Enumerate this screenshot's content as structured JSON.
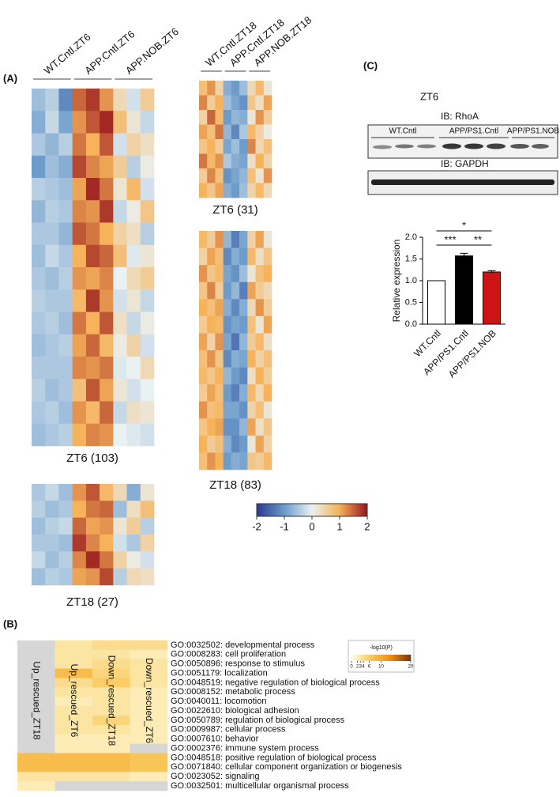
{
  "panels": {
    "a": "(A)",
    "b": "(B)",
    "c": "(C)"
  },
  "zscale": {
    "lim": [
      -2,
      2
    ],
    "ticks": [
      -2,
      -1,
      0,
      1,
      2
    ],
    "colors": [
      "#2a3c93",
      "#6d9ccb",
      "#eaf1f2",
      "#f6b35a",
      "#9b1a1e"
    ]
  },
  "blot": {
    "title": "ZT6",
    "probe1": "IB: RhoA",
    "probe2": "IB: GAPDH",
    "groups": [
      "WT.Cntl",
      "APP/PS1.Cntl",
      "APP/PS1.NOB"
    ]
  },
  "chart_data": [
    {
      "type": "heatmap",
      "title": "ZT6 (103)",
      "groups": [
        "WT.Cntl.ZT6",
        "APP.Cntl.ZT6",
        "APP.NOB.ZT6"
      ],
      "values": [
        [
          -0.6,
          -0.4,
          -1.2,
          1.5,
          1.8,
          1.2,
          0.4,
          -0.2,
          0.6
        ],
        [
          -0.8,
          -0.3,
          -0.9,
          1.2,
          1.6,
          1.9,
          0.8,
          0.2,
          -0.3
        ],
        [
          -0.5,
          -0.7,
          -0.4,
          1.4,
          1.0,
          1.6,
          -0.2,
          0.5,
          0.3
        ],
        [
          -1.0,
          -0.6,
          -0.8,
          1.7,
          1.3,
          1.1,
          0.6,
          -0.4,
          0.1
        ],
        [
          -0.4,
          -0.5,
          -0.6,
          1.1,
          1.9,
          1.4,
          0.2,
          0.9,
          -0.2
        ],
        [
          -0.7,
          -0.4,
          -0.5,
          1.3,
          1.2,
          1.8,
          -0.3,
          0.1,
          0.7
        ],
        [
          -0.5,
          -0.5,
          -0.7,
          1.6,
          1.4,
          1.0,
          0.5,
          0.3,
          -0.4
        ],
        [
          -0.6,
          -0.3,
          -0.5,
          1.0,
          1.7,
          1.5,
          0.8,
          -0.1,
          0.2
        ],
        [
          -0.5,
          -0.6,
          -0.4,
          1.2,
          1.1,
          1.3,
          0.0,
          0.4,
          0.6
        ],
        [
          -0.4,
          -0.5,
          -0.5,
          0.9,
          1.8,
          1.2,
          -0.2,
          0.2,
          -0.3
        ],
        [
          -0.5,
          -0.4,
          -0.6,
          1.4,
          1.0,
          1.6,
          0.3,
          -0.3,
          0.1
        ],
        [
          -0.6,
          -0.5,
          -0.4,
          1.1,
          1.5,
          0.9,
          0.1,
          0.5,
          -0.2
        ],
        [
          -0.5,
          -0.5,
          -0.5,
          1.3,
          1.2,
          1.4,
          -0.1,
          0.0,
          0.4
        ],
        [
          -0.4,
          -0.6,
          -0.5,
          0.8,
          1.6,
          1.1,
          0.2,
          -0.2,
          0.0
        ],
        [
          -0.5,
          -0.4,
          -0.6,
          1.2,
          0.9,
          1.5,
          -0.3,
          0.3,
          0.2
        ],
        [
          -0.6,
          -0.5,
          -0.4,
          1.0,
          1.3,
          1.2,
          0.0,
          -0.1,
          -0.2
        ]
      ]
    },
    {
      "type": "heatmap",
      "title": "ZT18 (27)",
      "values": [
        [
          -0.5,
          -0.3,
          -0.6,
          1.2,
          1.6,
          0.9,
          0.4,
          -0.8,
          0.2
        ],
        [
          -0.4,
          -0.6,
          -0.5,
          1.0,
          1.4,
          1.5,
          -0.6,
          0.3,
          0.8
        ],
        [
          -0.6,
          -0.4,
          -0.3,
          1.5,
          1.1,
          1.2,
          0.2,
          0.6,
          -0.4
        ],
        [
          -0.5,
          -0.5,
          -0.6,
          1.8,
          1.3,
          1.0,
          -0.2,
          -0.5,
          0.5
        ],
        [
          -0.3,
          -0.6,
          -0.4,
          1.3,
          1.9,
          1.4,
          0.5,
          0.1,
          -0.2
        ],
        [
          -0.6,
          -0.4,
          -0.5,
          1.1,
          1.2,
          1.7,
          -0.4,
          0.4,
          0.3
        ]
      ]
    },
    {
      "type": "heatmap",
      "title": "ZT6 (31)",
      "groups": [
        "WT.Cntl.ZT18",
        "APP.Cntl.ZT18",
        "APP.NOB.ZT18"
      ],
      "values": [
        [
          0.8,
          1.2,
          0.5,
          -0.8,
          -1.0,
          -0.6,
          0.4,
          0.9,
          0.2
        ],
        [
          1.3,
          0.6,
          1.0,
          -0.6,
          -0.9,
          -1.1,
          0.7,
          0.3,
          1.1
        ],
        [
          0.5,
          1.5,
          0.9,
          -1.0,
          -0.7,
          -0.8,
          0.2,
          1.2,
          0.6
        ],
        [
          1.1,
          0.8,
          1.4,
          -0.7,
          -1.2,
          -0.5,
          0.9,
          0.5,
          0.1
        ],
        [
          0.7,
          1.0,
          0.6,
          -0.9,
          -0.6,
          -1.0,
          1.3,
          0.4,
          0.8
        ],
        [
          1.4,
          0.9,
          1.2,
          -0.5,
          -0.8,
          -0.9,
          0.3,
          1.0,
          0.5
        ],
        [
          0.6,
          1.3,
          0.8,
          -1.1,
          -0.9,
          -0.7,
          0.8,
          0.2,
          1.2
        ],
        [
          1.0,
          0.7,
          1.1,
          -0.8,
          -1.0,
          -0.6,
          0.5,
          0.9,
          0.4
        ]
      ]
    },
    {
      "type": "heatmap",
      "title": "ZT18 (83)",
      "values": [
        [
          0.9,
          0.6,
          1.2,
          -0.7,
          -1.3,
          -0.9,
          0.5,
          1.1,
          0.2
        ],
        [
          0.5,
          1.1,
          0.8,
          -1.2,
          -0.8,
          -1.0,
          0.9,
          0.3,
          0.7
        ],
        [
          1.2,
          0.7,
          0.9,
          -0.9,
          -1.1,
          -0.6,
          0.2,
          0.8,
          1.0
        ],
        [
          0.7,
          1.3,
          0.6,
          -1.0,
          -0.7,
          -1.3,
          1.1,
          0.6,
          0.4
        ],
        [
          1.0,
          0.8,
          1.1,
          -0.8,
          -1.2,
          -0.8,
          0.4,
          1.2,
          0.6
        ],
        [
          0.6,
          1.0,
          0.9,
          -1.1,
          -0.9,
          -1.0,
          0.8,
          0.2,
          1.1
        ],
        [
          1.1,
          0.5,
          1.2,
          -0.9,
          -1.4,
          -0.7,
          0.6,
          0.9,
          0.3
        ],
        [
          0.8,
          1.2,
          0.7,
          -1.2,
          -0.8,
          -0.9,
          1.0,
          0.5,
          0.8
        ],
        [
          0.9,
          0.7,
          1.0,
          -0.7,
          -1.0,
          -1.2,
          0.3,
          1.0,
          0.6
        ],
        [
          0.6,
          1.1,
          0.8,
          -1.0,
          -1.3,
          -0.8,
          0.9,
          0.4,
          1.0
        ],
        [
          1.2,
          0.8,
          0.9,
          -0.9,
          -0.9,
          -1.1,
          0.5,
          0.8,
          0.2
        ],
        [
          0.7,
          1.0,
          1.1,
          -1.1,
          -1.1,
          -0.7,
          1.1,
          0.3,
          0.7
        ],
        [
          1.0,
          0.6,
          0.8,
          -0.8,
          -1.2,
          -1.0,
          0.2,
          1.1,
          0.5
        ],
        [
          0.8,
          1.2,
          1.0,
          -1.0,
          -0.8,
          -0.9,
          0.7,
          0.6,
          0.9
        ]
      ]
    },
    {
      "type": "bar",
      "categories": [
        "WT.Cntl",
        "APP/PS1.Cntl",
        "APP/PS1.NOB"
      ],
      "values": [
        1.0,
        1.57,
        1.2
      ],
      "errors": [
        null,
        0.06,
        0.03
      ],
      "colors": [
        "#ffffff",
        "#000000",
        "#cc1414"
      ],
      "y_label": "Relative expression",
      "ylim": [
        0,
        2
      ],
      "yticks": [
        {
          "value": 0,
          "label": "0.0"
        },
        0.5,
        {
          "value": 1,
          "label": "1.0"
        },
        1.5,
        {
          "value": 2,
          "label": "2.0"
        }
      ],
      "annotations": [
        "*",
        "***",
        "**"
      ]
    },
    {
      "type": "go-heatmap",
      "columns": [
        "Up_rescued_ZT18",
        "Up_rescued_ZT6",
        "Down_rescued_ZT18",
        "Down_rescued_ZT6"
      ],
      "rows": [
        "GO:0032502: developmental process",
        "GO:0008283: cell proliferation",
        "GO:0050896: response to stimulus",
        "GO:0051179: localization",
        "GO:0048519: negative regulation of biological process",
        "GO:0008152: metabolic process",
        "GO:0040011: locomotion",
        "GO:0022610: biological adhesion",
        "GO:0050789: regulation of biological process",
        "GO:0009987: cellular process",
        "GO:0007610: behavior",
        "GO:0002376: immune system process",
        "GO:0048518: positive regulation of biological process",
        "GO:0071840: cellular component organization or biogenesis",
        "GO:0023052: signaling",
        "GO:0032501: multicellular organismal process"
      ],
      "values": [
        [
          null,
          3,
          4,
          4
        ],
        [
          null,
          3,
          3,
          2
        ],
        [
          null,
          3,
          4,
          3
        ],
        [
          null,
          8,
          5,
          3
        ],
        [
          null,
          4,
          6,
          3
        ],
        [
          null,
          3,
          3,
          2
        ],
        [
          null,
          2,
          3,
          2
        ],
        [
          null,
          3,
          3,
          2
        ],
        [
          null,
          3,
          5,
          2
        ],
        [
          null,
          3,
          3,
          2
        ],
        [
          null,
          2,
          2,
          2
        ],
        [
          null,
          2,
          2,
          null
        ],
        [
          8,
          8,
          8,
          7
        ],
        [
          8,
          8,
          8,
          7
        ],
        [
          3,
          3,
          3,
          2
        ],
        [
          2,
          null,
          null,
          null
        ]
      ],
      "legend_title": "-log10(P)",
      "zlim": [
        0,
        20
      ],
      "zticks": [
        0,
        2,
        3,
        4,
        6,
        10,
        20
      ],
      "colors": [
        "#fffbdc",
        "#f9c85a",
        "#ee8a14",
        "#7a3b0c"
      ],
      "missing_color": "#d6d6d6"
    }
  ]
}
